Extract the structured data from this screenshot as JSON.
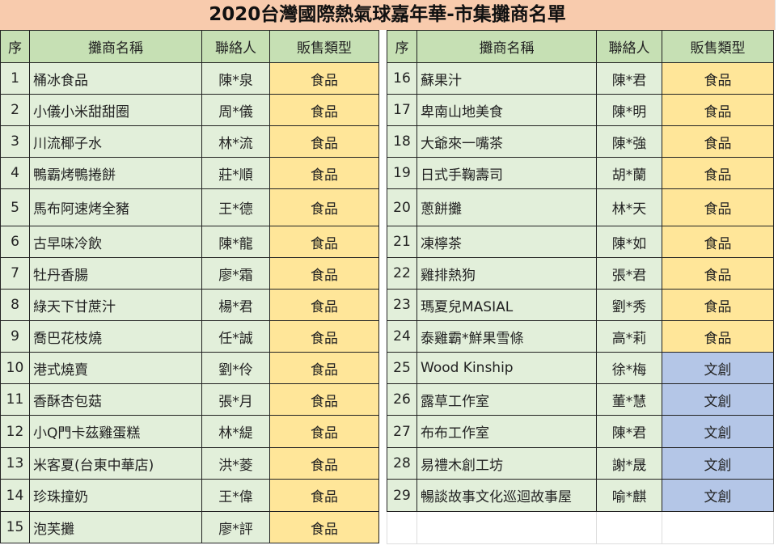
{
  "title": "2020台灣國際熱氣球嘉年華-市集攤商名單",
  "headers": [
    "序",
    "攤商名稱",
    "聯絡人",
    "販售類型"
  ],
  "colors": {
    "title_bg": "#f8cbad",
    "header_bg": "#c6e0b4",
    "row_bg": "#e2efda",
    "food_bg": "#ffe699",
    "craft_bg": "#b4c6e7"
  },
  "vendors": [
    {
      "no": "1",
      "name": "桶冰食品",
      "contact": "陳*泉",
      "type": "食品"
    },
    {
      "no": "2",
      "name": "小儀小米甜甜圈",
      "contact": "周*儀",
      "type": "食品"
    },
    {
      "no": "3",
      "name": "川流椰子水",
      "contact": "林*流",
      "type": "食品"
    },
    {
      "no": "4",
      "name": "鴨霸烤鴨捲餅",
      "contact": "莊*順",
      "type": "食品"
    },
    {
      "no": "5",
      "name": "馬布阿速烤全豬",
      "contact": "王*德",
      "type": "食品"
    },
    {
      "no": "6",
      "name": "古早味冷飲",
      "contact": "陳*龍",
      "type": "食品"
    },
    {
      "no": "7",
      "name": "牡丹香腸",
      "contact": "廖*霜",
      "type": "食品"
    },
    {
      "no": "8",
      "name": "綠天下甘蔗汁",
      "contact": "楊*君",
      "type": "食品"
    },
    {
      "no": "9",
      "name": "喬巴花枝燒",
      "contact": "任*誠",
      "type": "食品"
    },
    {
      "no": "10",
      "name": "港式燒賣",
      "contact": "劉*伶",
      "type": "食品"
    },
    {
      "no": "11",
      "name": "香酥杏包菇",
      "contact": "張*月",
      "type": "食品"
    },
    {
      "no": "12",
      "name": "小Q門卡茲雞蛋糕",
      "contact": "林*緹",
      "type": "食品"
    },
    {
      "no": "13",
      "name": "米客夏(台東中華店)",
      "contact": "洪*菱",
      "type": "食品"
    },
    {
      "no": "14",
      "name": "珍珠撞奶",
      "contact": "王*偉",
      "type": "食品"
    },
    {
      "no": "15",
      "name": "泡芙攤",
      "contact": "廖*評",
      "type": "食品"
    },
    {
      "no": "16",
      "name": "蘇果汁",
      "contact": "陳*君",
      "type": "食品"
    },
    {
      "no": "17",
      "name": "卑南山地美食",
      "contact": "陳*明",
      "type": "食品"
    },
    {
      "no": "18",
      "name": "大爺來一嘴茶",
      "contact": "陳*強",
      "type": "食品"
    },
    {
      "no": "19",
      "name": "日式手鞠壽司",
      "contact": "胡*蘭",
      "type": "食品"
    },
    {
      "no": "20",
      "name": "蔥餅攤",
      "contact": "林*天",
      "type": "食品"
    },
    {
      "no": "21",
      "name": "凍檸茶",
      "contact": "陳*如",
      "type": "食品"
    },
    {
      "no": "22",
      "name": "雞排熱狗",
      "contact": "張*君",
      "type": "食品"
    },
    {
      "no": "23",
      "name": "瑪夏兒MASIAL",
      "contact": "劉*秀",
      "type": "食品"
    },
    {
      "no": "24",
      "name": "泰雞霸*鮮果雪條",
      "contact": "高*莉",
      "type": "食品"
    },
    {
      "no": "25",
      "name": "Wood Kinship",
      "contact": "徐*梅",
      "type": "文創"
    },
    {
      "no": "26",
      "name": "露草工作室",
      "contact": "董*慧",
      "type": "文創"
    },
    {
      "no": "27",
      "name": "布布工作室",
      "contact": "陳*君",
      "type": "文創"
    },
    {
      "no": "28",
      "name": "易禮木創工坊",
      "contact": "謝*晟",
      "type": "文創"
    },
    {
      "no": "29",
      "name": "暢談故事文化巡迴故事屋",
      "contact": "喻*麒",
      "type": "文創"
    }
  ]
}
